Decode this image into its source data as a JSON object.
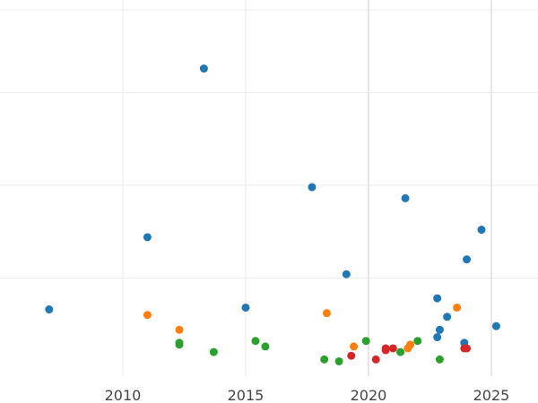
{
  "chart_data": {
    "type": "scatter",
    "title": "",
    "xlabel": "",
    "ylabel": "",
    "xlim": [
      2005.0,
      2026.9
    ],
    "ylim": [
      -0.3,
      20.0
    ],
    "x_ticks": [
      2010,
      2015,
      2020,
      2025
    ],
    "y_gridlines": [
      5,
      10,
      15
    ],
    "vertical_lines": [
      2020,
      2025
    ],
    "grid": true,
    "legend": "none",
    "series": [
      {
        "color": "#1f77b4",
        "points": [
          {
            "x": 2007.0,
            "y": 3.3
          },
          {
            "x": 2011.0,
            "y": 7.2
          },
          {
            "x": 2013.3,
            "y": 16.3
          },
          {
            "x": 2015.0,
            "y": 3.4
          },
          {
            "x": 2017.7,
            "y": 9.9
          },
          {
            "x": 2019.1,
            "y": 5.2
          },
          {
            "x": 2021.5,
            "y": 9.3
          },
          {
            "x": 2022.8,
            "y": 1.8
          },
          {
            "x": 2022.9,
            "y": 2.2
          },
          {
            "x": 2022.8,
            "y": 3.9
          },
          {
            "x": 2023.2,
            "y": 2.9
          },
          {
            "x": 2023.9,
            "y": 1.5
          },
          {
            "x": 2024.0,
            "y": 6.0
          },
          {
            "x": 2024.6,
            "y": 7.6
          },
          {
            "x": 2025.2,
            "y": 2.4
          }
        ]
      },
      {
        "color": "#ff7f0e",
        "points": [
          {
            "x": 2011.0,
            "y": 3.0
          },
          {
            "x": 2012.3,
            "y": 2.2
          },
          {
            "x": 2018.3,
            "y": 3.1
          },
          {
            "x": 2019.4,
            "y": 1.3
          },
          {
            "x": 2021.6,
            "y": 1.2
          },
          {
            "x": 2021.7,
            "y": 1.4
          },
          {
            "x": 2023.6,
            "y": 3.4
          }
        ]
      },
      {
        "color": "#2ca02c",
        "points": [
          {
            "x": 2012.3,
            "y": 1.5
          },
          {
            "x": 2012.3,
            "y": 1.4
          },
          {
            "x": 2013.7,
            "y": 1.0
          },
          {
            "x": 2015.4,
            "y": 1.6
          },
          {
            "x": 2015.8,
            "y": 1.3
          },
          {
            "x": 2018.2,
            "y": 0.6
          },
          {
            "x": 2018.8,
            "y": 0.5
          },
          {
            "x": 2019.9,
            "y": 1.6
          },
          {
            "x": 2021.3,
            "y": 1.0
          },
          {
            "x": 2022.0,
            "y": 1.6
          },
          {
            "x": 2022.9,
            "y": 0.6
          }
        ]
      },
      {
        "color": "#d62728",
        "points": [
          {
            "x": 2019.3,
            "y": 0.8
          },
          {
            "x": 2020.3,
            "y": 0.6
          },
          {
            "x": 2020.7,
            "y": 1.1
          },
          {
            "x": 2020.7,
            "y": 1.2
          },
          {
            "x": 2021.0,
            "y": 1.2
          },
          {
            "x": 2023.9,
            "y": 1.2
          },
          {
            "x": 2024.0,
            "y": 1.2
          }
        ]
      }
    ]
  }
}
